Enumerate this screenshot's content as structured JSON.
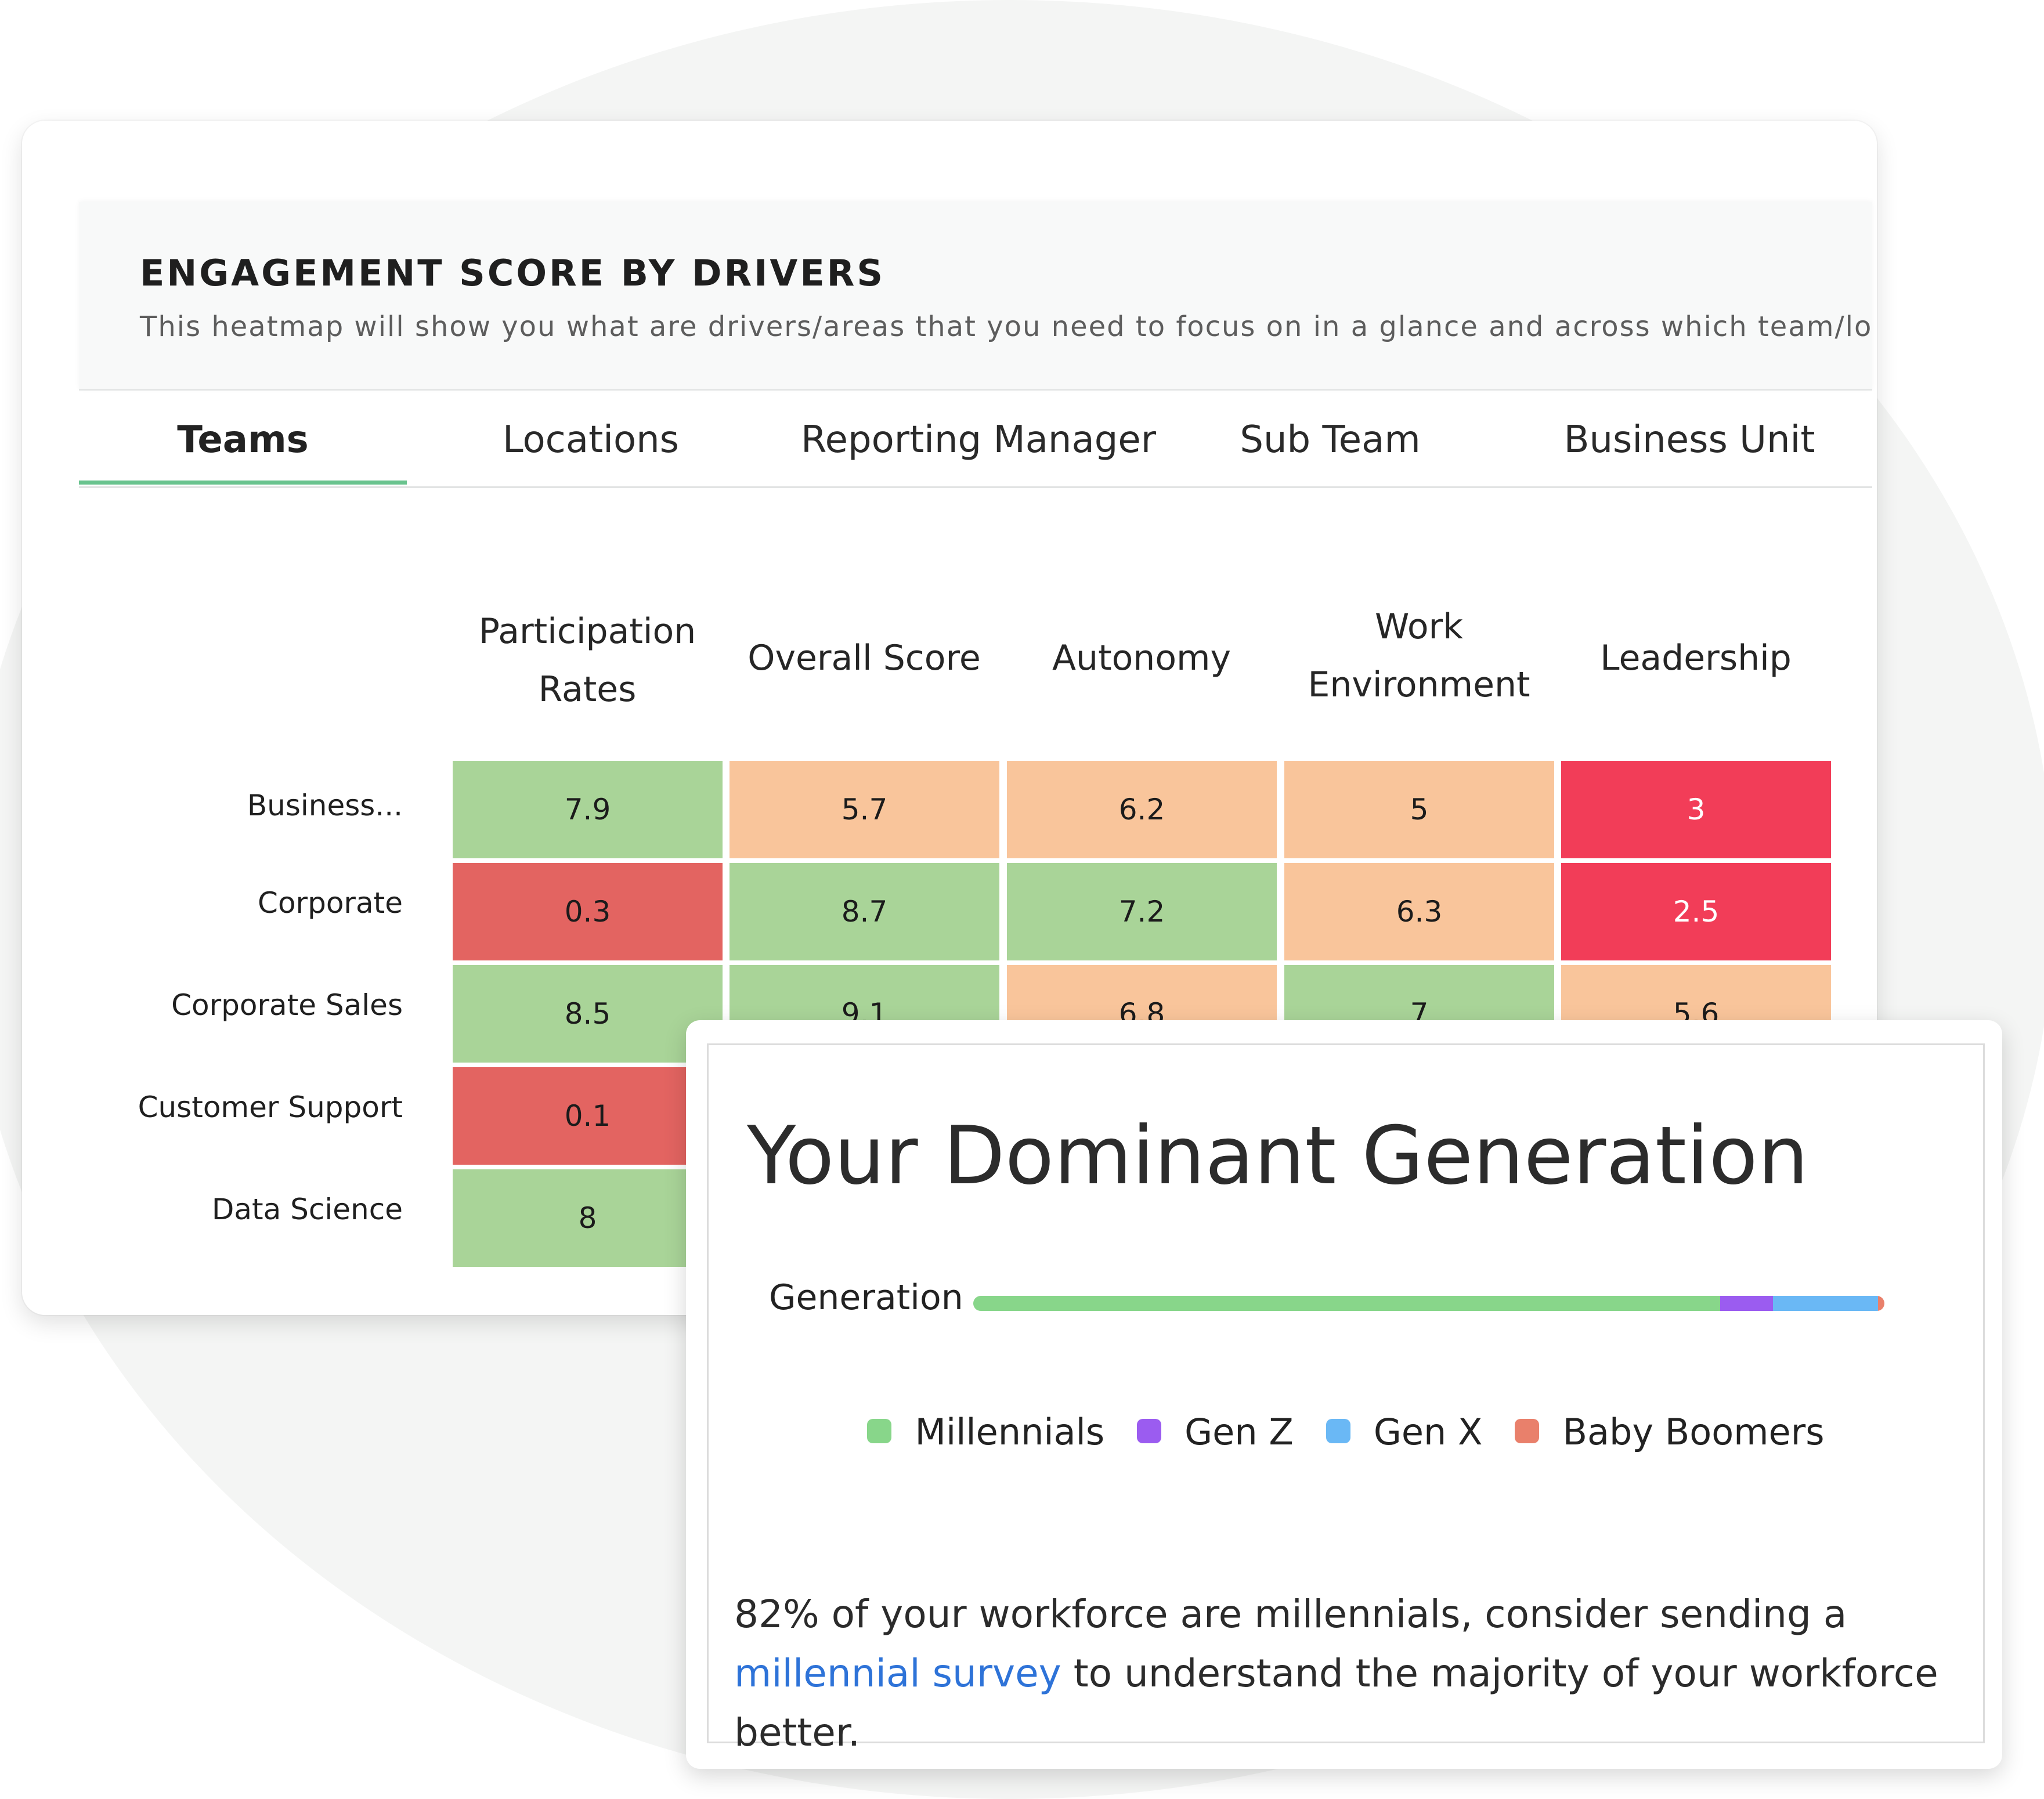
{
  "engagement": {
    "title": "ENGAGEMENT SCORE BY DRIVERS",
    "subtitle": "This heatmap will show you what are drivers/areas that you need to focus on in a glance and across which team/locati",
    "tabs": [
      {
        "label": "Teams",
        "active": true
      },
      {
        "label": "Locations",
        "active": false
      },
      {
        "label": "Reporting Manager",
        "active": false
      },
      {
        "label": "Sub Team",
        "active": false
      },
      {
        "label": "Business Unit",
        "active": false
      }
    ],
    "accent_color": "#69c38e"
  },
  "chart_data": {
    "type": "heatmap",
    "columns": [
      {
        "line1": "Participation",
        "line2": "Rates"
      },
      {
        "line1": "Overall Score",
        "line2": ""
      },
      {
        "line1": "Autonomy",
        "line2": ""
      },
      {
        "line1": "Work",
        "line2": "Environment"
      },
      {
        "line1": "Leadership",
        "line2": ""
      }
    ],
    "rows": [
      {
        "label": "Business...",
        "values": [
          "7.9",
          "5.7",
          "6.2",
          "5",
          "3"
        ]
      },
      {
        "label": "Corporate",
        "values": [
          "0.3",
          "8.7",
          "7.2",
          "6.3",
          "2.5"
        ]
      },
      {
        "label": "Corporate Sales",
        "values": [
          "8.5",
          "9.1",
          "6.8",
          "7",
          "5.6"
        ]
      },
      {
        "label": "Customer Support",
        "values": [
          "0.1",
          "",
          "",
          "",
          ""
        ]
      },
      {
        "label": "Data Science",
        "values": [
          "8",
          "",
          "",
          "",
          ""
        ]
      }
    ],
    "color_scale": {
      "red_high": "#f23d58",
      "red": "#e36461",
      "orange": "#f9c59b",
      "green": "#a9d498"
    }
  },
  "generation": {
    "title": "Your Dominant Generation",
    "bar_label": "Generation",
    "segments": [
      {
        "name": "Millennials",
        "share": 0.82,
        "color": "#88d68a"
      },
      {
        "name": "Gen Z",
        "share": 0.058,
        "color": "#9b5cf0"
      },
      {
        "name": "Gen X",
        "share": 0.115,
        "color": "#6ab8f5"
      },
      {
        "name": "Baby Boomers",
        "share": 0.007,
        "color": "#e9806b"
      }
    ],
    "text_before": "82% of your workforce are millennials, consider sending a ",
    "link_text": "millennial survey",
    "text_after": " to understand the majority of your workforce better."
  }
}
